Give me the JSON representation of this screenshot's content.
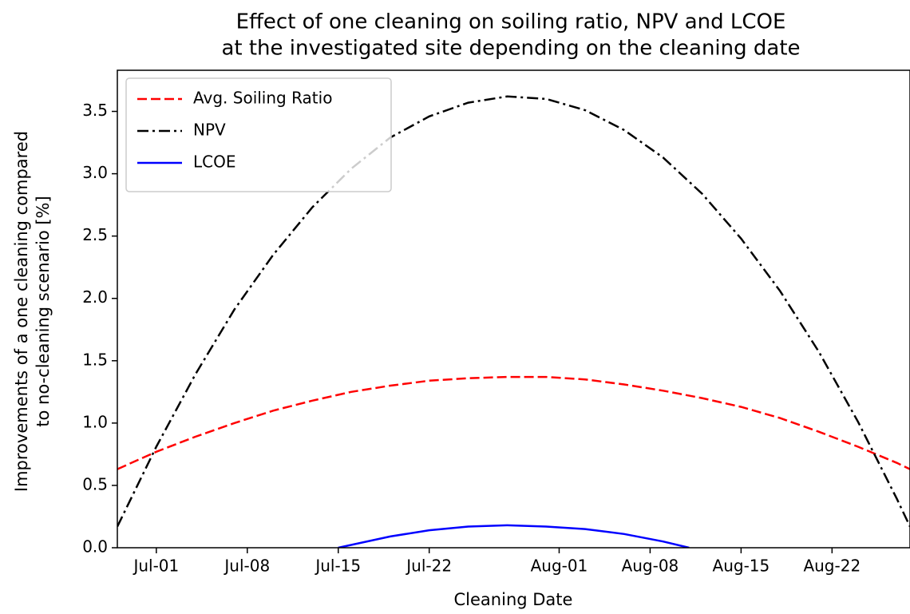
{
  "chart_data": {
    "type": "line",
    "title": [
      "Effect of one cleaning on soiling ratio, NPV and LCOE",
      "at the investigated site depending on the cleaning date"
    ],
    "x_label": "Cleaning Date",
    "y_label": [
      "Improvements of a one cleaning compared",
      "to no-cleaning scenario [%]"
    ],
    "x": [
      "Jun-28",
      "Jul-01",
      "Jul-04",
      "Jul-07",
      "Jul-10",
      "Jul-13",
      "Jul-16",
      "Jul-19",
      "Jul-22",
      "Jul-25",
      "Jul-28",
      "Jul-31",
      "Aug-03",
      "Aug-06",
      "Aug-09",
      "Aug-12",
      "Aug-15",
      "Aug-18",
      "Aug-21",
      "Aug-24",
      "Aug-27",
      "Aug-28"
    ],
    "series": [
      {
        "name": "Avg. Soiling Ratio",
        "color": "#ff0000",
        "linestyle": "dashed",
        "values": [
          0.63,
          0.77,
          0.89,
          1.0,
          1.1,
          1.18,
          1.25,
          1.3,
          1.34,
          1.36,
          1.37,
          1.37,
          1.35,
          1.31,
          1.26,
          1.2,
          1.13,
          1.04,
          0.93,
          0.81,
          0.68,
          0.63
        ]
      },
      {
        "name": "NPV",
        "color": "#000000",
        "linestyle": "dashdot",
        "values": [
          0.17,
          0.81,
          1.39,
          1.91,
          2.35,
          2.73,
          3.04,
          3.29,
          3.46,
          3.57,
          3.62,
          3.6,
          3.51,
          3.35,
          3.13,
          2.84,
          2.48,
          2.06,
          1.57,
          1.01,
          0.39,
          0.17
        ]
      },
      {
        "name": "LCOE",
        "color": "#0000ff",
        "linestyle": "solid",
        "x": [
          "Jul-15",
          "Jul-19",
          "Jul-22",
          "Jul-25",
          "Jul-28",
          "Jul-31",
          "Aug-03",
          "Aug-06",
          "Aug-09",
          "Aug-11"
        ],
        "values": [
          0,
          0.09,
          0.14,
          0.17,
          0.18,
          0.17,
          0.15,
          0.11,
          0.05,
          0
        ]
      }
    ],
    "xlim": [
      "Jun-28",
      "Aug-28"
    ],
    "xticks": [
      "Jul-01",
      "Jul-08",
      "Jul-15",
      "Jul-22",
      "Aug-01",
      "Aug-08",
      "Aug-15",
      "Aug-22"
    ],
    "ylim": [
      0,
      3.83
    ],
    "yticks": [
      {
        "value": 0,
        "label": "0.0"
      },
      {
        "value": 0.5,
        "label": "0.5"
      },
      {
        "value": 1,
        "label": "1.0"
      },
      {
        "value": 1.5,
        "label": "1.5"
      },
      {
        "value": 2,
        "label": "2.0"
      },
      {
        "value": 2.5,
        "label": "2.5"
      },
      {
        "value": 3,
        "label": "3.0"
      },
      {
        "value": 3.5,
        "label": "3.5"
      }
    ],
    "legend": "upper left",
    "grid": false
  }
}
